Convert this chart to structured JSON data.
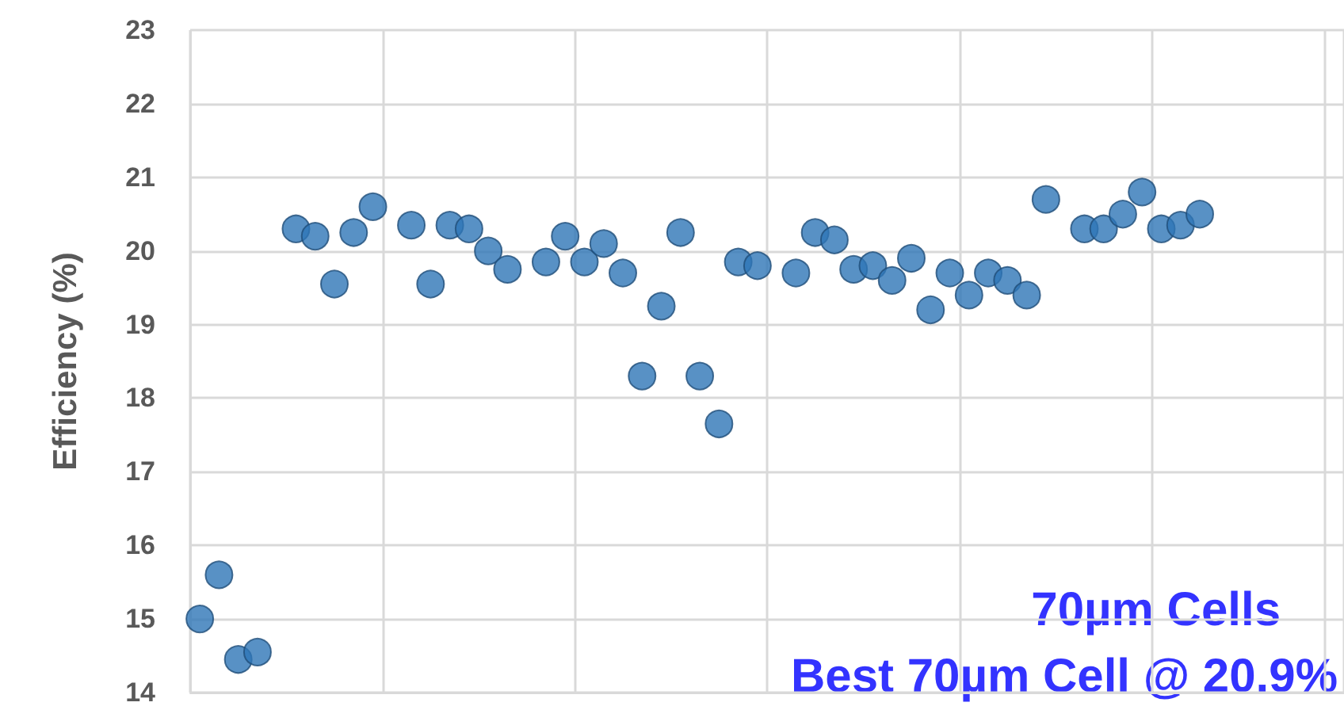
{
  "chart_data": {
    "type": "scatter",
    "ylabel": "Efficiency (%)",
    "categories": [
      null,
      null,
      null,
      null,
      null,
      null,
      null,
      null,
      null,
      null,
      null,
      null,
      null,
      null,
      null,
      null,
      null,
      null,
      null,
      null,
      null,
      null,
      null,
      null,
      null,
      null,
      null,
      null,
      null,
      null,
      null,
      null,
      null,
      null,
      null,
      null,
      null,
      null,
      null,
      null,
      null,
      null,
      null,
      null,
      null,
      null,
      null,
      null,
      null,
      null,
      null,
      null,
      null,
      null,
      null,
      null,
      null,
      null,
      null,
      null
    ],
    "series": [
      {
        "color": "#2e75b6",
        "values": [
          15.0,
          15.6,
          14.45,
          14.55,
          null,
          20.3,
          20.2,
          19.55,
          20.25,
          20.6,
          null,
          20.35,
          19.55,
          20.35,
          20.3,
          20.0,
          19.75,
          null,
          19.85,
          20.2,
          19.85,
          20.1,
          19.7,
          18.3,
          19.25,
          20.25,
          18.3,
          17.65,
          19.85,
          19.8,
          null,
          19.7,
          20.25,
          20.15,
          19.75,
          19.8,
          19.6,
          19.9,
          19.2,
          19.7,
          19.4,
          19.7,
          19.6,
          19.4,
          20.7,
          null,
          20.3,
          20.3,
          20.5,
          20.8,
          20.3,
          20.35,
          20.5,
          null,
          null,
          null,
          null,
          null,
          null,
          null
        ]
      }
    ],
    "ylim": [
      14,
      23
    ],
    "yticks": [
      14,
      15,
      16,
      17,
      18,
      19,
      20,
      21,
      22,
      23
    ],
    "tick_labels": "y",
    "grid": true,
    "marker": "circle",
    "annotations": [
      "70µm Cells",
      "Best 70µm Cell @ 20.9%"
    ]
  }
}
